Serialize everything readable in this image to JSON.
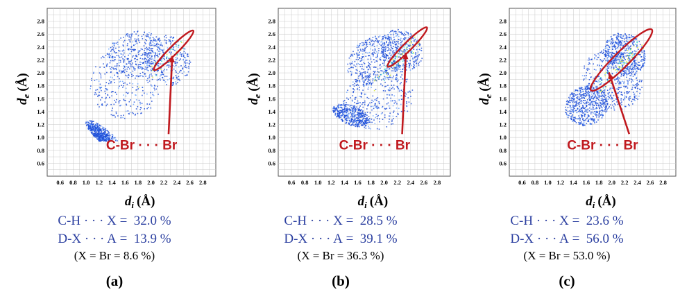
{
  "chart_data": [
    {
      "type": "scatter",
      "panel_label": "(a)",
      "xlabel": "d",
      "xlabel_sub": "i",
      "ylabel": "d",
      "ylabel_sub": "e",
      "axis_unit": "(Å)",
      "x_ticks": [
        "0.6",
        "0.8",
        "1.0",
        "1.2",
        "1.4",
        "1.6",
        "1.8",
        "2.0",
        "2.2",
        "2.4",
        "2.6",
        "2.8"
      ],
      "y_ticks": [
        "0.6",
        "0.8",
        "1.0",
        "1.2",
        "1.4",
        "1.6",
        "1.8",
        "2.0",
        "2.2",
        "2.4",
        "2.6",
        "2.8"
      ],
      "xlim": [
        0.4,
        3.0
      ],
      "ylim": [
        0.4,
        3.0
      ],
      "grid": true,
      "annotation": "C-Br · · · Br",
      "highlight_center": [
        2.35,
        2.35
      ],
      "stats": [
        {
          "label": "C-H · · · X",
          "value": "32.0 %"
        },
        {
          "label": "D-X · · · A",
          "value": "13.9 %"
        }
      ],
      "subnote": "(X = Br = 8.6 %)"
    },
    {
      "type": "scatter",
      "panel_label": "(b)",
      "xlabel": "d",
      "xlabel_sub": "i",
      "ylabel": "d",
      "ylabel_sub": "e",
      "axis_unit": "(Å)",
      "x_ticks": [
        "0.6",
        "0.8",
        "1.0",
        "1.2",
        "1.4",
        "1.6",
        "1.8",
        "2.0",
        "2.2",
        "2.4",
        "2.6",
        "2.8"
      ],
      "y_ticks": [
        "0.6",
        "0.8",
        "1.0",
        "1.2",
        "1.4",
        "1.6",
        "1.8",
        "2.0",
        "2.2",
        "2.4",
        "2.6",
        "2.8"
      ],
      "xlim": [
        0.4,
        3.0
      ],
      "ylim": [
        0.4,
        3.0
      ],
      "grid": true,
      "annotation": "C-Br · · · Br",
      "highlight_center": [
        2.35,
        2.4
      ],
      "stats": [
        {
          "label": "C-H · · · X",
          "value": "28.5 %"
        },
        {
          "label": "D-X · · · A",
          "value": "39.1 %"
        }
      ],
      "subnote": "(X = Br = 36.3 %)"
    },
    {
      "type": "scatter",
      "panel_label": "(c)",
      "xlabel": "d",
      "xlabel_sub": "i",
      "ylabel": "d",
      "ylabel_sub": "e",
      "axis_unit": "(Å)",
      "x_ticks": [
        "0.6",
        "0.8",
        "1.0",
        "1.2",
        "1.4",
        "1.6",
        "1.8",
        "2.0",
        "2.2",
        "2.4",
        "2.6",
        "2.8"
      ],
      "y_ticks": [
        "0.6",
        "0.8",
        "1.0",
        "1.2",
        "1.4",
        "1.6",
        "1.8",
        "2.0",
        "2.2",
        "2.4",
        "2.6",
        "2.8"
      ],
      "xlim": [
        0.4,
        3.0
      ],
      "ylim": [
        0.4,
        3.0
      ],
      "grid": true,
      "annotation": "C-Br · · · Br",
      "highlight_center": [
        2.15,
        2.2
      ],
      "stats": [
        {
          "label": "C-H · · · X",
          "value": "23.6 %"
        },
        {
          "label": "D-X · · · A",
          "value": "56.0 %"
        }
      ],
      "subnote": "(X = Br = 53.0 %)"
    }
  ],
  "colors": {
    "stat_text": "#2b3fa0",
    "annotation": "#c0191e",
    "grid": "#c8c8c8",
    "fingerprint_low": "#1f4fd8",
    "fingerprint_mid": "#2fd6c8",
    "fingerprint_high": "#d8e830"
  }
}
